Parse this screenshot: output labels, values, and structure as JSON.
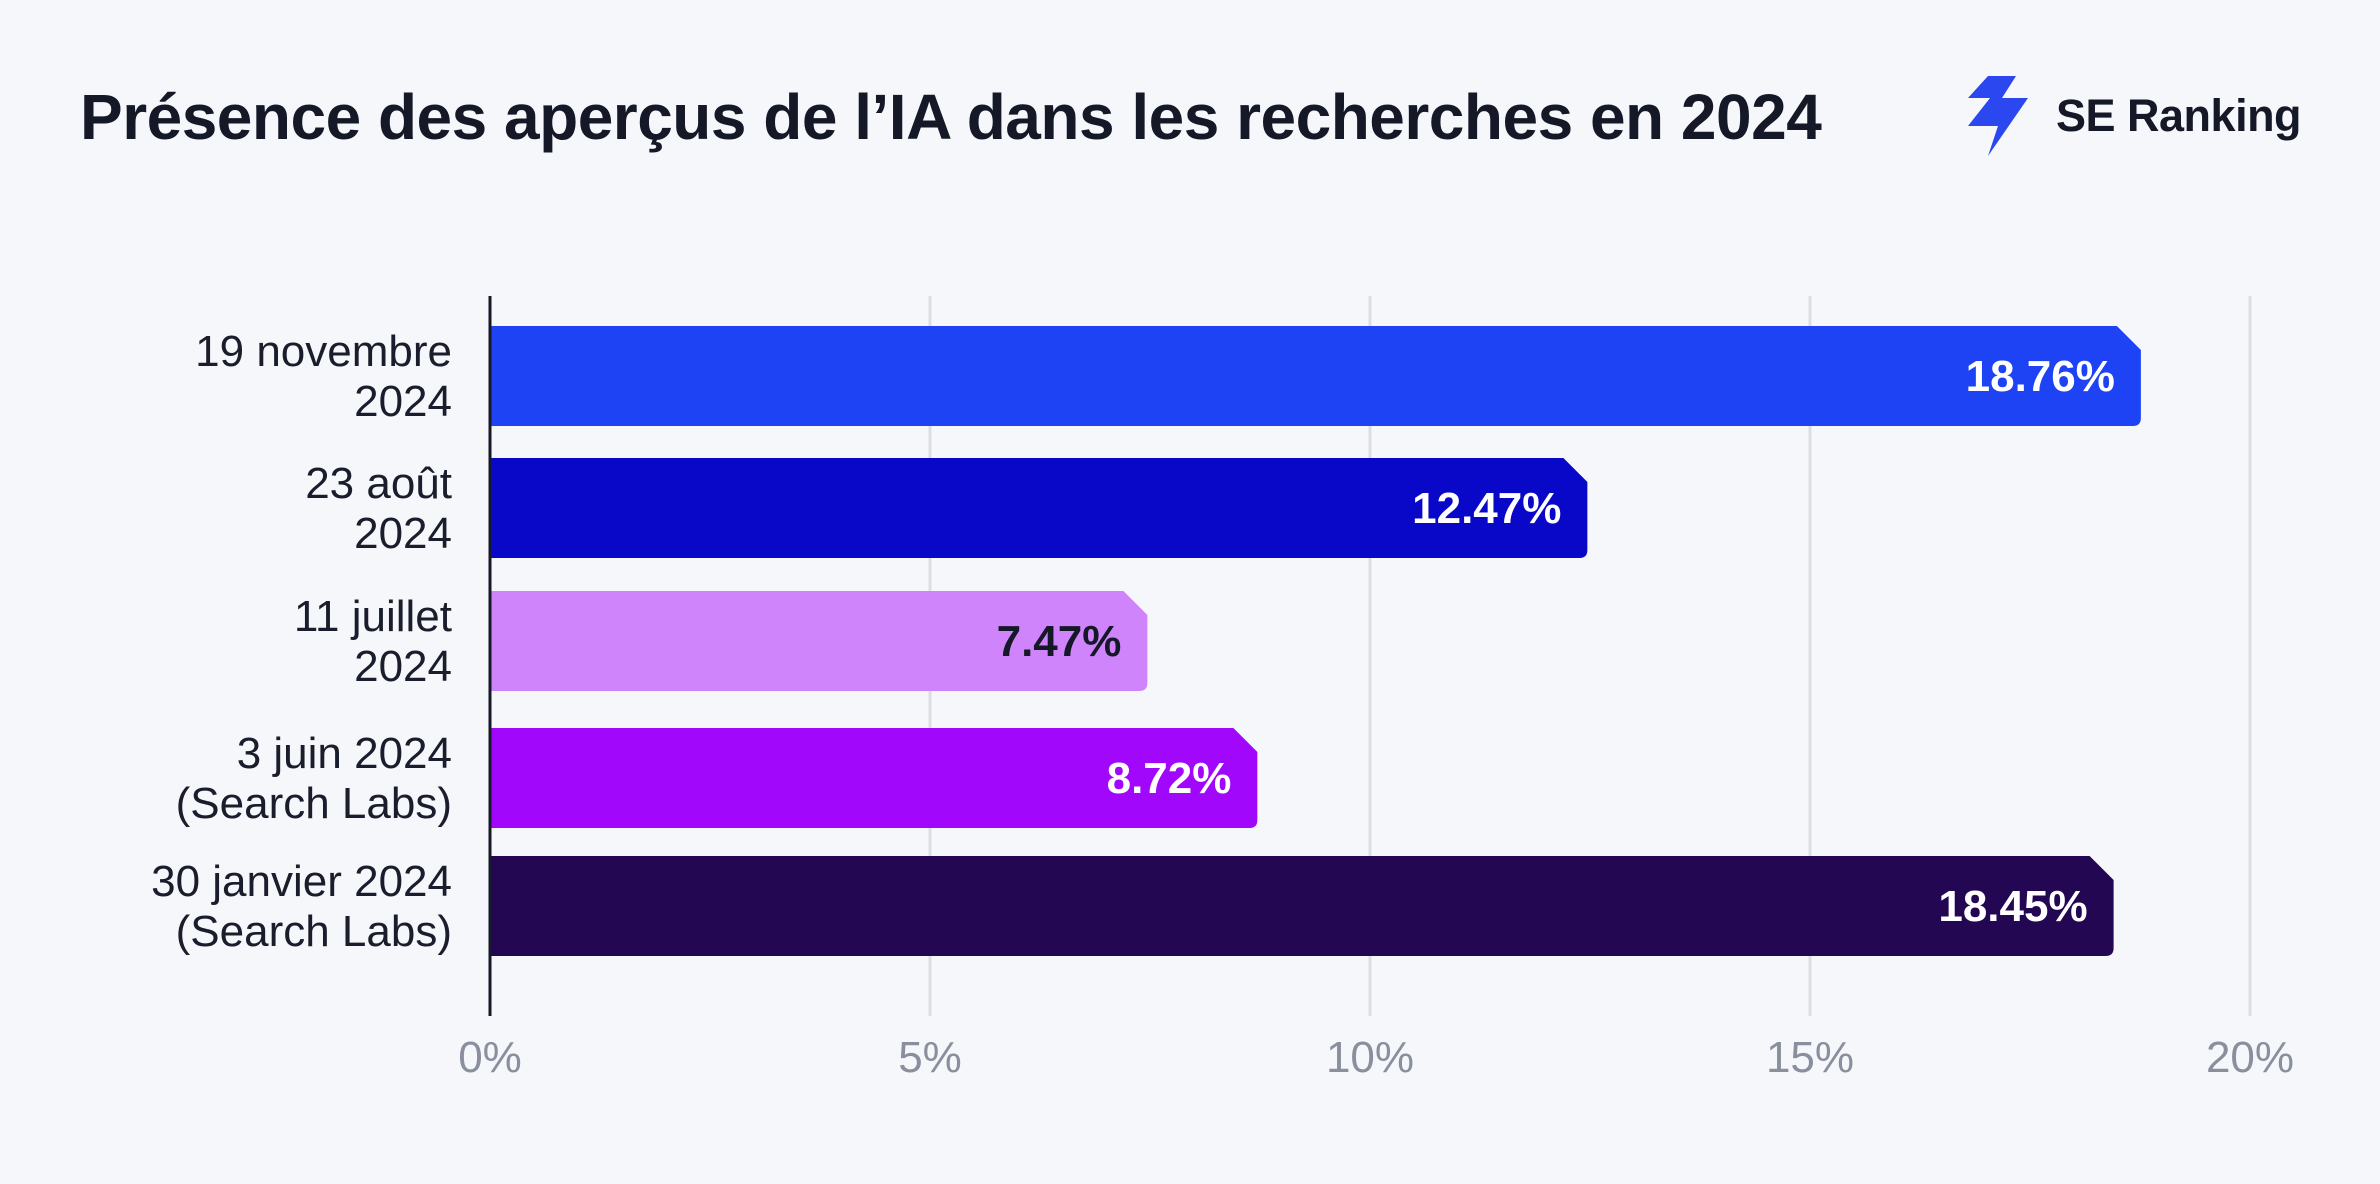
{
  "brand": {
    "name": "SE Ranking",
    "icon": "se-ranking-bolt-icon",
    "color": "#2b47f0"
  },
  "chart_data": {
    "type": "bar",
    "orientation": "horizontal",
    "title": "Présence des aperçus de l’IA dans les recherches en 2024",
    "xlabel": "",
    "ylabel": "",
    "xlim": [
      0,
      20
    ],
    "grid": true,
    "legend": "none",
    "ticks": [
      "0%",
      "5%",
      "10%",
      "15%",
      "20%"
    ],
    "tick_values": [
      0,
      5,
      10,
      15,
      20
    ],
    "bars": [
      {
        "label_lines": [
          "19 novembre",
          "2024"
        ],
        "value": 18.76,
        "value_label": "18.76%",
        "color": "#1e43f5",
        "text_color": "#ffffff"
      },
      {
        "label_lines": [
          "23 août",
          "2024"
        ],
        "value": 12.47,
        "value_label": "12.47%",
        "color": "#0a08c8",
        "text_color": "#ffffff"
      },
      {
        "label_lines": [
          "11 juillet",
          "2024"
        ],
        "value": 7.47,
        "value_label": "7.47%",
        "color": "#cf84fb",
        "text_color": "#141827"
      },
      {
        "label_lines": [
          "3 juin 2024",
          "(Search Labs)"
        ],
        "value": 8.72,
        "value_label": "8.72%",
        "color": "#a107fb",
        "text_color": "#ffffff"
      },
      {
        "label_lines": [
          "30 janvier 2024",
          "(Search Labs)"
        ],
        "value": 18.45,
        "value_label": "18.45%",
        "color": "#230753",
        "text_color": "#ffffff"
      }
    ]
  }
}
